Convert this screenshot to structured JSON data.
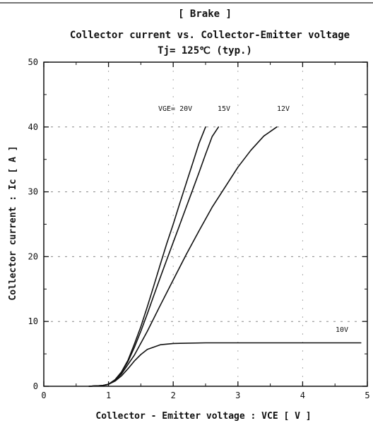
{
  "chart_data": {
    "type": "line",
    "title_lines": [
      "[ Brake ]",
      "Collector current  vs.  Collector-Emitter voltage",
      "Tj= 125℃     (typ.)"
    ],
    "xlabel": "Collector - Emitter voltage  :  VCE  [ V ]",
    "ylabel": "Collector current  :  Ic  [ A ]",
    "xlim": [
      0,
      5
    ],
    "ylim": [
      0,
      50
    ],
    "xticks": [
      "0",
      "1",
      "2",
      "3",
      "4",
      "5"
    ],
    "yticks": [
      "0",
      "10",
      "20",
      "30",
      "40",
      "50"
    ],
    "grid": true,
    "legend": "none",
    "series": [
      {
        "name": "VGE= 20V",
        "x": [
          0.7,
          0.9,
          1.0,
          1.1,
          1.2,
          1.3,
          1.4,
          1.5,
          1.6,
          1.7,
          1.8,
          1.9,
          2.0,
          2.1,
          2.2,
          2.3,
          2.4,
          2.5
        ],
        "y": [
          0,
          0.1,
          0.3,
          1.0,
          2.2,
          4.0,
          6.5,
          9.2,
          12.3,
          15.5,
          18.8,
          22.0,
          25.0,
          28.2,
          31.3,
          34.4,
          37.5,
          40.0
        ]
      },
      {
        "name": "15V",
        "x": [
          0.7,
          0.9,
          1.0,
          1.1,
          1.2,
          1.3,
          1.4,
          1.5,
          1.6,
          1.7,
          1.8,
          1.9,
          2.0,
          2.1,
          2.2,
          2.3,
          2.4,
          2.5,
          2.6,
          2.7
        ],
        "y": [
          0,
          0.1,
          0.3,
          1.0,
          2.1,
          3.8,
          6.0,
          8.5,
          11.2,
          14.0,
          16.8,
          19.5,
          22.2,
          24.9,
          27.6,
          30.3,
          33.0,
          35.8,
          38.5,
          40.0
        ]
      },
      {
        "name": "12V",
        "x": [
          0.7,
          0.9,
          1.0,
          1.1,
          1.2,
          1.4,
          1.6,
          1.8,
          2.0,
          2.2,
          2.4,
          2.6,
          2.8,
          3.0,
          3.2,
          3.4,
          3.6
        ],
        "y": [
          0,
          0.1,
          0.3,
          0.9,
          1.9,
          4.8,
          8.5,
          12.5,
          16.4,
          20.3,
          24.0,
          27.6,
          30.7,
          33.8,
          36.4,
          38.6,
          40.0
        ]
      },
      {
        "name": "10V",
        "x": [
          0.7,
          0.9,
          1.0,
          1.1,
          1.2,
          1.3,
          1.4,
          1.5,
          1.6,
          1.8,
          2.0,
          2.5,
          3.0,
          4.0,
          4.9
        ],
        "y": [
          0,
          0.1,
          0.3,
          0.8,
          1.6,
          2.7,
          3.9,
          4.9,
          5.7,
          6.4,
          6.6,
          6.7,
          6.7,
          6.7,
          6.7
        ]
      }
    ]
  }
}
